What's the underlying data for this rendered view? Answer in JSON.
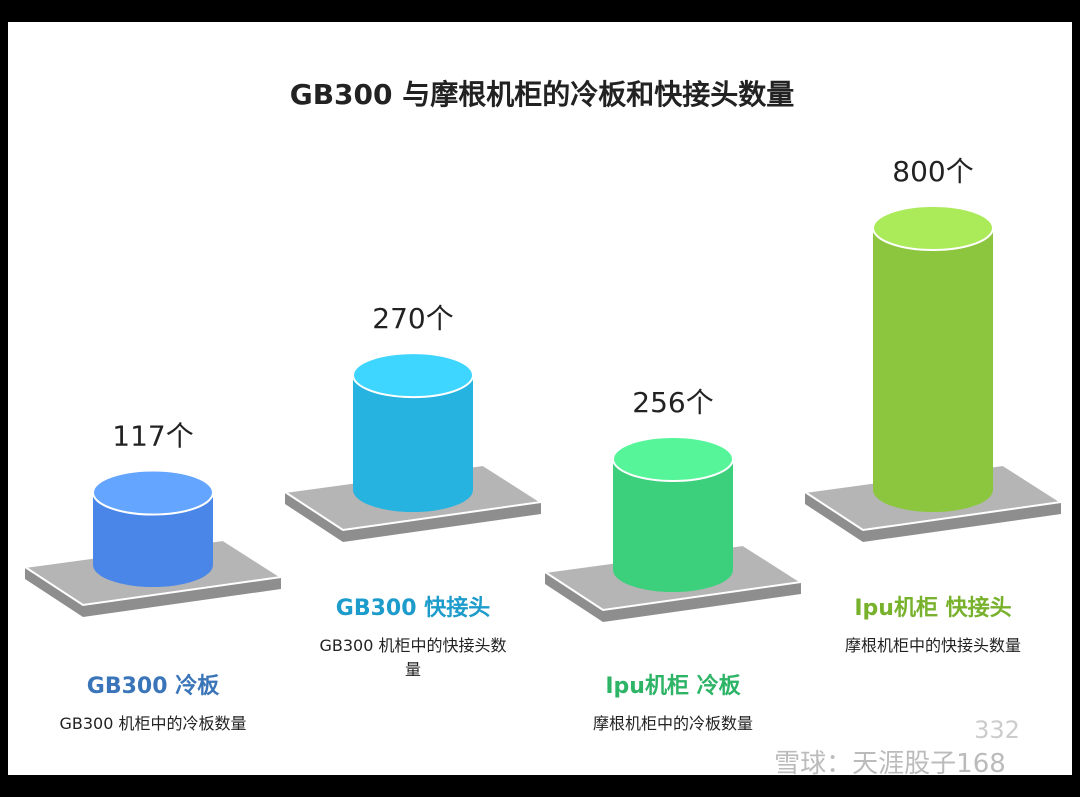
{
  "chart_data": {
    "type": "cylinder",
    "title": "GB300 与摩根机柜的冷板和快接头数量",
    "categories": [
      "GB300 冷板",
      "GB300 快接头",
      "Ipu机柜 冷板",
      "Ipu机柜 快接头"
    ],
    "descriptions": [
      "GB300 机柜中的冷板数量",
      "GB300 机柜中的快接头数量",
      "摩根机柜中的冷板数量",
      "摩根机柜中的快接头数量"
    ],
    "values": [
      117,
      270,
      256,
      800
    ],
    "value_labels": [
      "117个",
      "270个",
      "256个",
      "800个"
    ],
    "colors": [
      "#4a86e8",
      "#27b3e0",
      "#3dd07c",
      "#8cc63f"
    ],
    "label_colors": [
      "#3b75b9",
      "#1d9ccc",
      "#2db466",
      "#78b22d"
    ]
  },
  "watermark": {
    "text": "雪球：天涯股子168",
    "count": "332"
  }
}
